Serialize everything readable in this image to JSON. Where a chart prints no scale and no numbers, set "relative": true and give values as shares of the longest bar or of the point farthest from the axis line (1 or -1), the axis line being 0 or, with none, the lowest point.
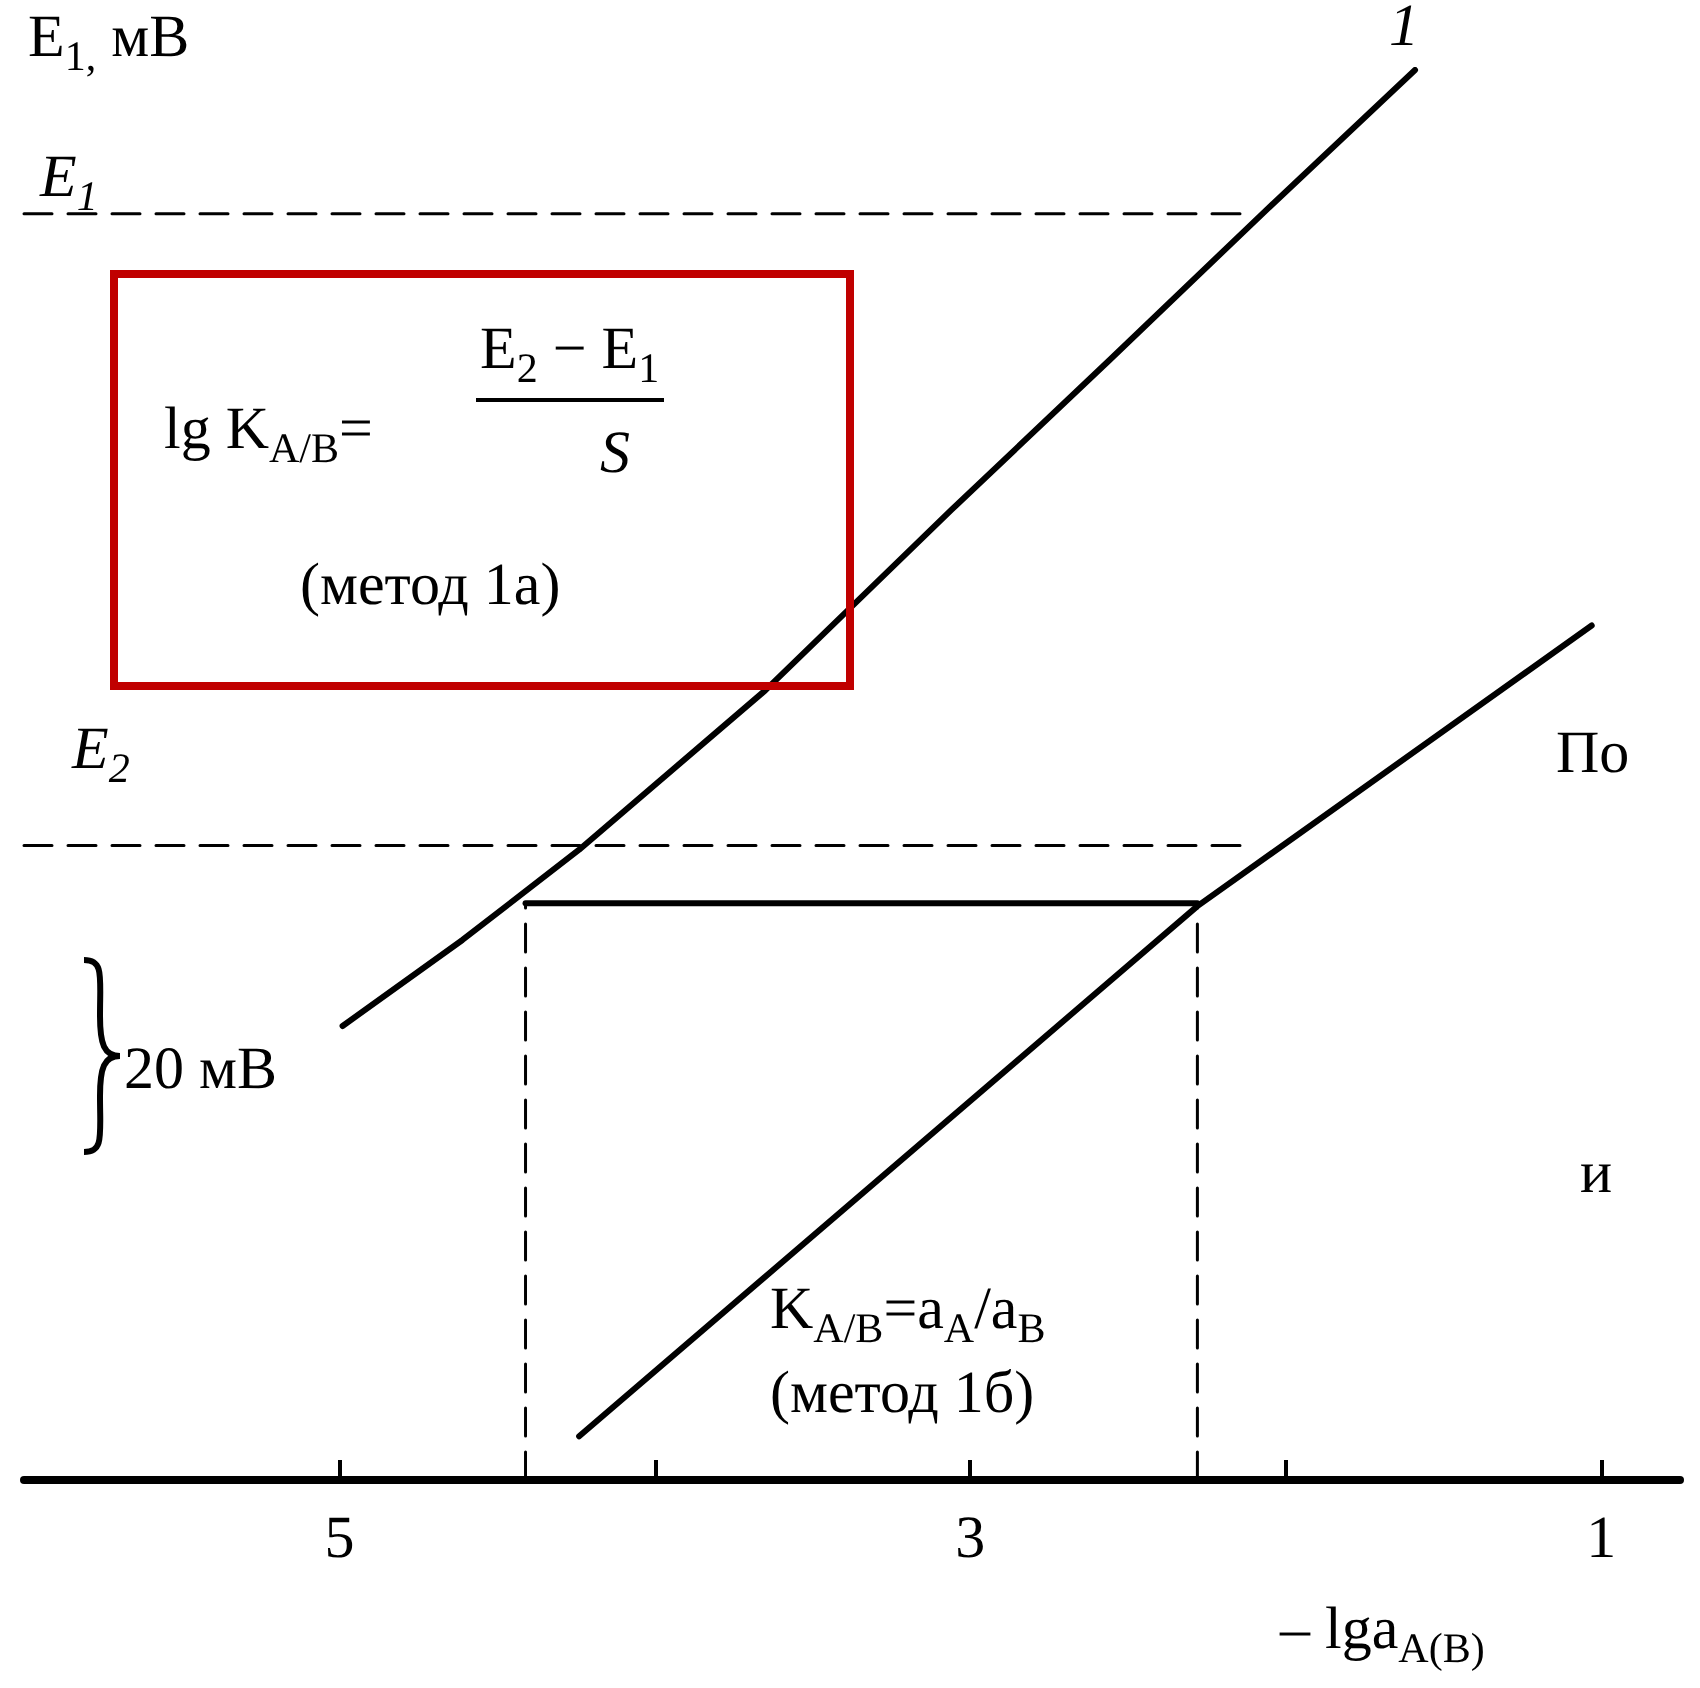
{
  "chart_data": {
    "type": "line",
    "ylabel": "E$_{1,}$ мВ",
    "xlabel": "– lga$_{A(B)}$",
    "relative": true,
    "xlim": [
      6,
      0.75
    ],
    "xticks": [
      5,
      {
        "value": 4,
        "label": null
      },
      3,
      {
        "value": 2,
        "label": null
      },
      1
    ],
    "grid": false,
    "legend": false,
    "marker": "none",
    "line_style": "solid",
    "series": [
      {
        "name": "1",
        "color": "#000000",
        "x": [
          4.99,
          4.61,
          4.24,
          3.65,
          3.06,
          2.56,
          2.06,
          1.59
        ],
        "values": [
          0.322,
          0.383,
          0.447,
          0.56,
          0.688,
          0.794,
          0.901,
          1.0
        ]
      },
      {
        "color": "#000000",
        "x": [
          4.24,
          2.28,
          1.03
        ],
        "values": [
          0.031,
          0.407,
          0.606
        ]
      },
      {
        "color": "#000000",
        "x": [
          6,
          2.12
        ],
        "values": [
          0.898,
          0.898
        ],
        "line_style": "dashed"
      },
      {
        "color": "#000000",
        "x": [
          6,
          2.12
        ],
        "values": [
          0.45,
          0.45
        ],
        "line_style": "dashed"
      },
      {
        "color": "#000000",
        "x": [
          4.41,
          2.28
        ],
        "values": [
          0.409,
          0.409
        ]
      },
      {
        "color": "#000000",
        "x": [
          4.41,
          4.41
        ],
        "values": [
          0,
          0.409
        ],
        "line_style": "dashed"
      },
      {
        "color": "#000000",
        "x": [
          2.28,
          2.28
        ],
        "values": [
          0,
          0.409
        ],
        "line_style": "dashed"
      }
    ],
    "annotations": [
      "lg K$_{A/B}$=",
      "E$_{2}$ − E$_{1}$",
      "S",
      "(метод 1a)",
      "K$_{A/B}$=a$_{A}$/a$_{B}$",
      "(метод 1б)",
      "20 мВ",
      "По",
      "и",
      "E$_{1}$",
      "E$_{2}$"
    ]
  }
}
